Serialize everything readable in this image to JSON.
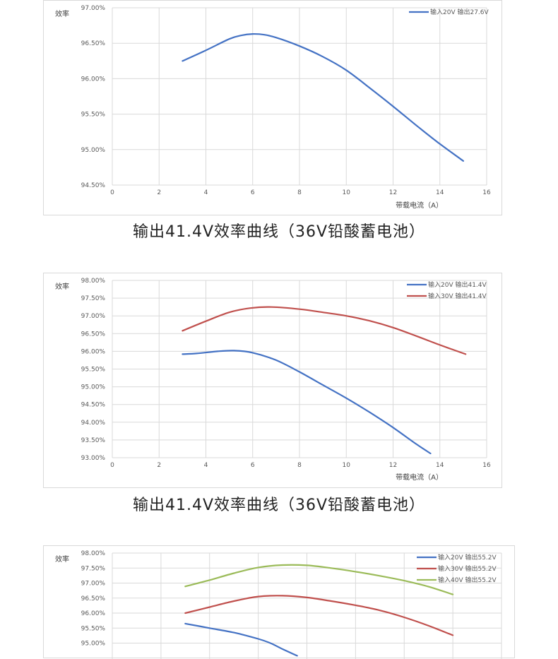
{
  "captions": [
    "输出41.4V效率曲线（36V铅酸蓄电池）",
    "输出41.4V效率曲线（36V铅酸蓄电池）"
  ],
  "colors": {
    "blue": "#4472c4",
    "red": "#c0504d",
    "green": "#9bbb59",
    "grid": "#d9d9d9",
    "tick": "#595959"
  },
  "chart_data": [
    {
      "type": "line",
      "ylabel": "效率",
      "xlabel": "带载电流（A）",
      "xlim": [
        0,
        16
      ],
      "xticks": [
        0,
        2,
        4,
        6,
        8,
        10,
        12,
        14,
        16
      ],
      "ylim": [
        94.5,
        97.0
      ],
      "yticks": [
        94.5,
        95.0,
        95.5,
        96.0,
        96.5,
        97.0
      ],
      "ytick_labels": [
        "94.50%",
        "95.00%",
        "95.50%",
        "96.00%",
        "96.50%",
        "97.00%"
      ],
      "legend_position": "top-right",
      "grid": true,
      "series": [
        {
          "name": "输入20V 输出27.6V",
          "color": "#4472c4",
          "x": [
            3,
            4,
            5,
            5.5,
            6,
            6.5,
            7,
            8,
            9,
            10,
            11,
            12,
            13,
            14,
            15
          ],
          "y": [
            96.25,
            96.4,
            96.56,
            96.61,
            96.63,
            96.62,
            96.58,
            96.46,
            96.31,
            96.12,
            95.87,
            95.61,
            95.34,
            95.08,
            94.84
          ]
        }
      ]
    },
    {
      "type": "line",
      "ylabel": "效率",
      "xlabel": "带载电流（A）",
      "xlim": [
        0,
        16
      ],
      "xticks": [
        0,
        2,
        4,
        6,
        8,
        10,
        12,
        14,
        16
      ],
      "ylim": [
        93.0,
        98.0
      ],
      "yticks": [
        93.0,
        93.5,
        94.0,
        94.5,
        95.0,
        95.5,
        96.0,
        96.5,
        97.0,
        97.5,
        98.0
      ],
      "ytick_labels": [
        "93.00%",
        "93.50%",
        "94.00%",
        "94.50%",
        "95.00%",
        "95.50%",
        "96.00%",
        "96.50%",
        "97.00%",
        "97.50%",
        "98.00%"
      ],
      "legend_position": "top-right",
      "grid": true,
      "series": [
        {
          "name": "输入20V 输出41.4V",
          "color": "#4472c4",
          "x": [
            3,
            3.6,
            4.5,
            5.2,
            6,
            7,
            8,
            9,
            10,
            11,
            12,
            13,
            13.6
          ],
          "y": [
            95.92,
            95.94,
            96.0,
            96.02,
            95.96,
            95.75,
            95.42,
            95.05,
            94.68,
            94.28,
            93.85,
            93.38,
            93.12
          ]
        },
        {
          "name": "输入30V 输出41.4V",
          "color": "#c0504d",
          "x": [
            3,
            4,
            5,
            5.9,
            6.8,
            8,
            9,
            10,
            11,
            12,
            13,
            14,
            15.1
          ],
          "y": [
            96.58,
            96.85,
            97.1,
            97.22,
            97.25,
            97.19,
            97.1,
            97.0,
            96.86,
            96.67,
            96.43,
            96.18,
            95.92
          ]
        }
      ]
    },
    {
      "type": "line",
      "ylabel": "效率",
      "xlabel": "",
      "xlim": [
        0,
        16
      ],
      "xticks": [],
      "ylim": [
        94.0,
        98.0
      ],
      "yticks": [
        95.0,
        95.5,
        96.0,
        96.5,
        97.0,
        97.5,
        98.0
      ],
      "ytick_labels": [
        "95.00%",
        "95.50%",
        "96.00%",
        "96.50%",
        "97.00%",
        "97.50%",
        "98.00%"
      ],
      "legend_position": "top-right",
      "grid": true,
      "series": [
        {
          "name": "输入20V 输出55.2V",
          "color": "#4472c4",
          "x": [
            3,
            4,
            5,
            6,
            6.5,
            7,
            7.6
          ],
          "y": [
            95.65,
            95.5,
            95.35,
            95.14,
            95.0,
            94.8,
            94.58
          ]
        },
        {
          "name": "输入30V 输出55.2V",
          "color": "#c0504d",
          "x": [
            3,
            4,
            5,
            6,
            7,
            8,
            9,
            10,
            11,
            12,
            13,
            14
          ],
          "y": [
            96.0,
            96.2,
            96.4,
            96.55,
            96.58,
            96.52,
            96.4,
            96.26,
            96.09,
            95.86,
            95.58,
            95.26
          ]
        },
        {
          "name": "输入40V 输出55.2V",
          "color": "#9bbb59",
          "x": [
            3,
            4,
            5,
            6,
            7,
            8,
            9,
            10,
            11,
            12,
            13,
            14
          ],
          "y": [
            96.89,
            97.1,
            97.33,
            97.52,
            97.6,
            97.59,
            97.5,
            97.38,
            97.24,
            97.08,
            96.88,
            96.62
          ]
        }
      ]
    }
  ]
}
